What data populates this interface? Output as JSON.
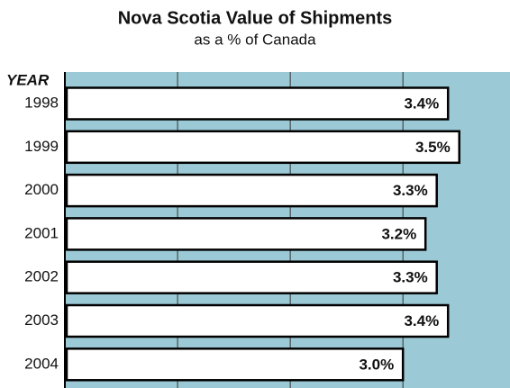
{
  "chart_data": {
    "type": "barh",
    "title": "Nova Scotia Value of Shipments",
    "subtitle": "as a % of Canada",
    "y_label": "YEAR",
    "categories": [
      "1998",
      "1999",
      "2000",
      "2001",
      "2002",
      "2003",
      "2004"
    ],
    "values": [
      3.4,
      3.5,
      3.3,
      3.2,
      3.3,
      3.4,
      3.0
    ],
    "value_labels": [
      "3.4%",
      "3.5%",
      "3.3%",
      "3.2%",
      "3.3%",
      "3.4%",
      "3.0%"
    ],
    "color": "#ffffff",
    "background": "#9bc9d5",
    "xlim": [
      0,
      3.95
    ],
    "xticks": [
      1,
      2,
      3
    ],
    "grid": true
  }
}
